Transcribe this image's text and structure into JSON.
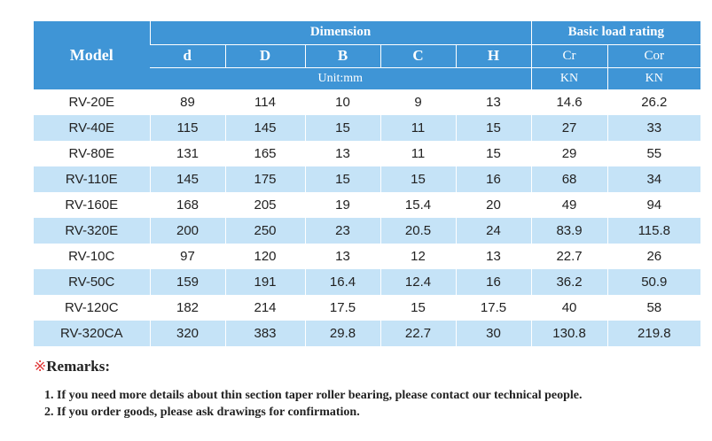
{
  "table": {
    "model_header": "Model",
    "dimension_header": "Dimension",
    "load_header": "Basic load rating",
    "dim_symbols": [
      "d",
      "D",
      "B",
      "C",
      "H"
    ],
    "dim_unit": "Unit:mm",
    "load_symbols": [
      "Cr",
      "Cor"
    ],
    "load_units": [
      "KN",
      "KN"
    ],
    "rows": [
      {
        "model": "RV-20E",
        "d": "89",
        "D": "114",
        "B": "10",
        "C": "9",
        "H": "13",
        "Cr": "14.6",
        "Cor": "26.2"
      },
      {
        "model": "RV-40E",
        "d": "115",
        "D": "145",
        "B": "15",
        "C": "11",
        "H": "15",
        "Cr": "27",
        "Cor": "33"
      },
      {
        "model": "RV-80E",
        "d": "131",
        "D": "165",
        "B": "13",
        "C": "11",
        "H": "15",
        "Cr": "29",
        "Cor": "55"
      },
      {
        "model": "RV-110E",
        "d": "145",
        "D": "175",
        "B": "15",
        "C": "15",
        "H": "16",
        "Cr": "68",
        "Cor": "34"
      },
      {
        "model": "RV-160E",
        "d": "168",
        "D": "205",
        "B": "19",
        "C": "15.4",
        "H": "20",
        "Cr": "49",
        "Cor": "94"
      },
      {
        "model": "RV-320E",
        "d": "200",
        "D": "250",
        "B": "23",
        "C": "20.5",
        "H": "24",
        "Cr": "83.9",
        "Cor": "115.8"
      },
      {
        "model": "RV-10C",
        "d": "97",
        "D": "120",
        "B": "13",
        "C": "12",
        "H": "13",
        "Cr": "22.7",
        "Cor": "26"
      },
      {
        "model": "RV-50C",
        "d": "159",
        "D": "191",
        "B": "16.4",
        "C": "12.4",
        "H": "16",
        "Cr": "36.2",
        "Cor": "50.9"
      },
      {
        "model": "RV-120C",
        "d": "182",
        "D": "214",
        "B": "17.5",
        "C": "15",
        "H": "17.5",
        "Cr": "40",
        "Cor": "58"
      },
      {
        "model": "RV-320CA",
        "d": "320",
        "D": "383",
        "B": "29.8",
        "C": "22.7",
        "H": "30",
        "Cr": "130.8",
        "Cor": "219.8"
      }
    ]
  },
  "remarks": {
    "mark": "※",
    "title": "Remarks:",
    "notes": [
      "1. If you need more details about thin section taper roller bearing, please contact our technical people.",
      "2. If you order goods, please ask drawings for confirmation."
    ]
  },
  "colors": {
    "header_bg": "#3f95d6",
    "stripe_bg": "#c5e3f7",
    "remark_mark": "#e03a3a"
  }
}
